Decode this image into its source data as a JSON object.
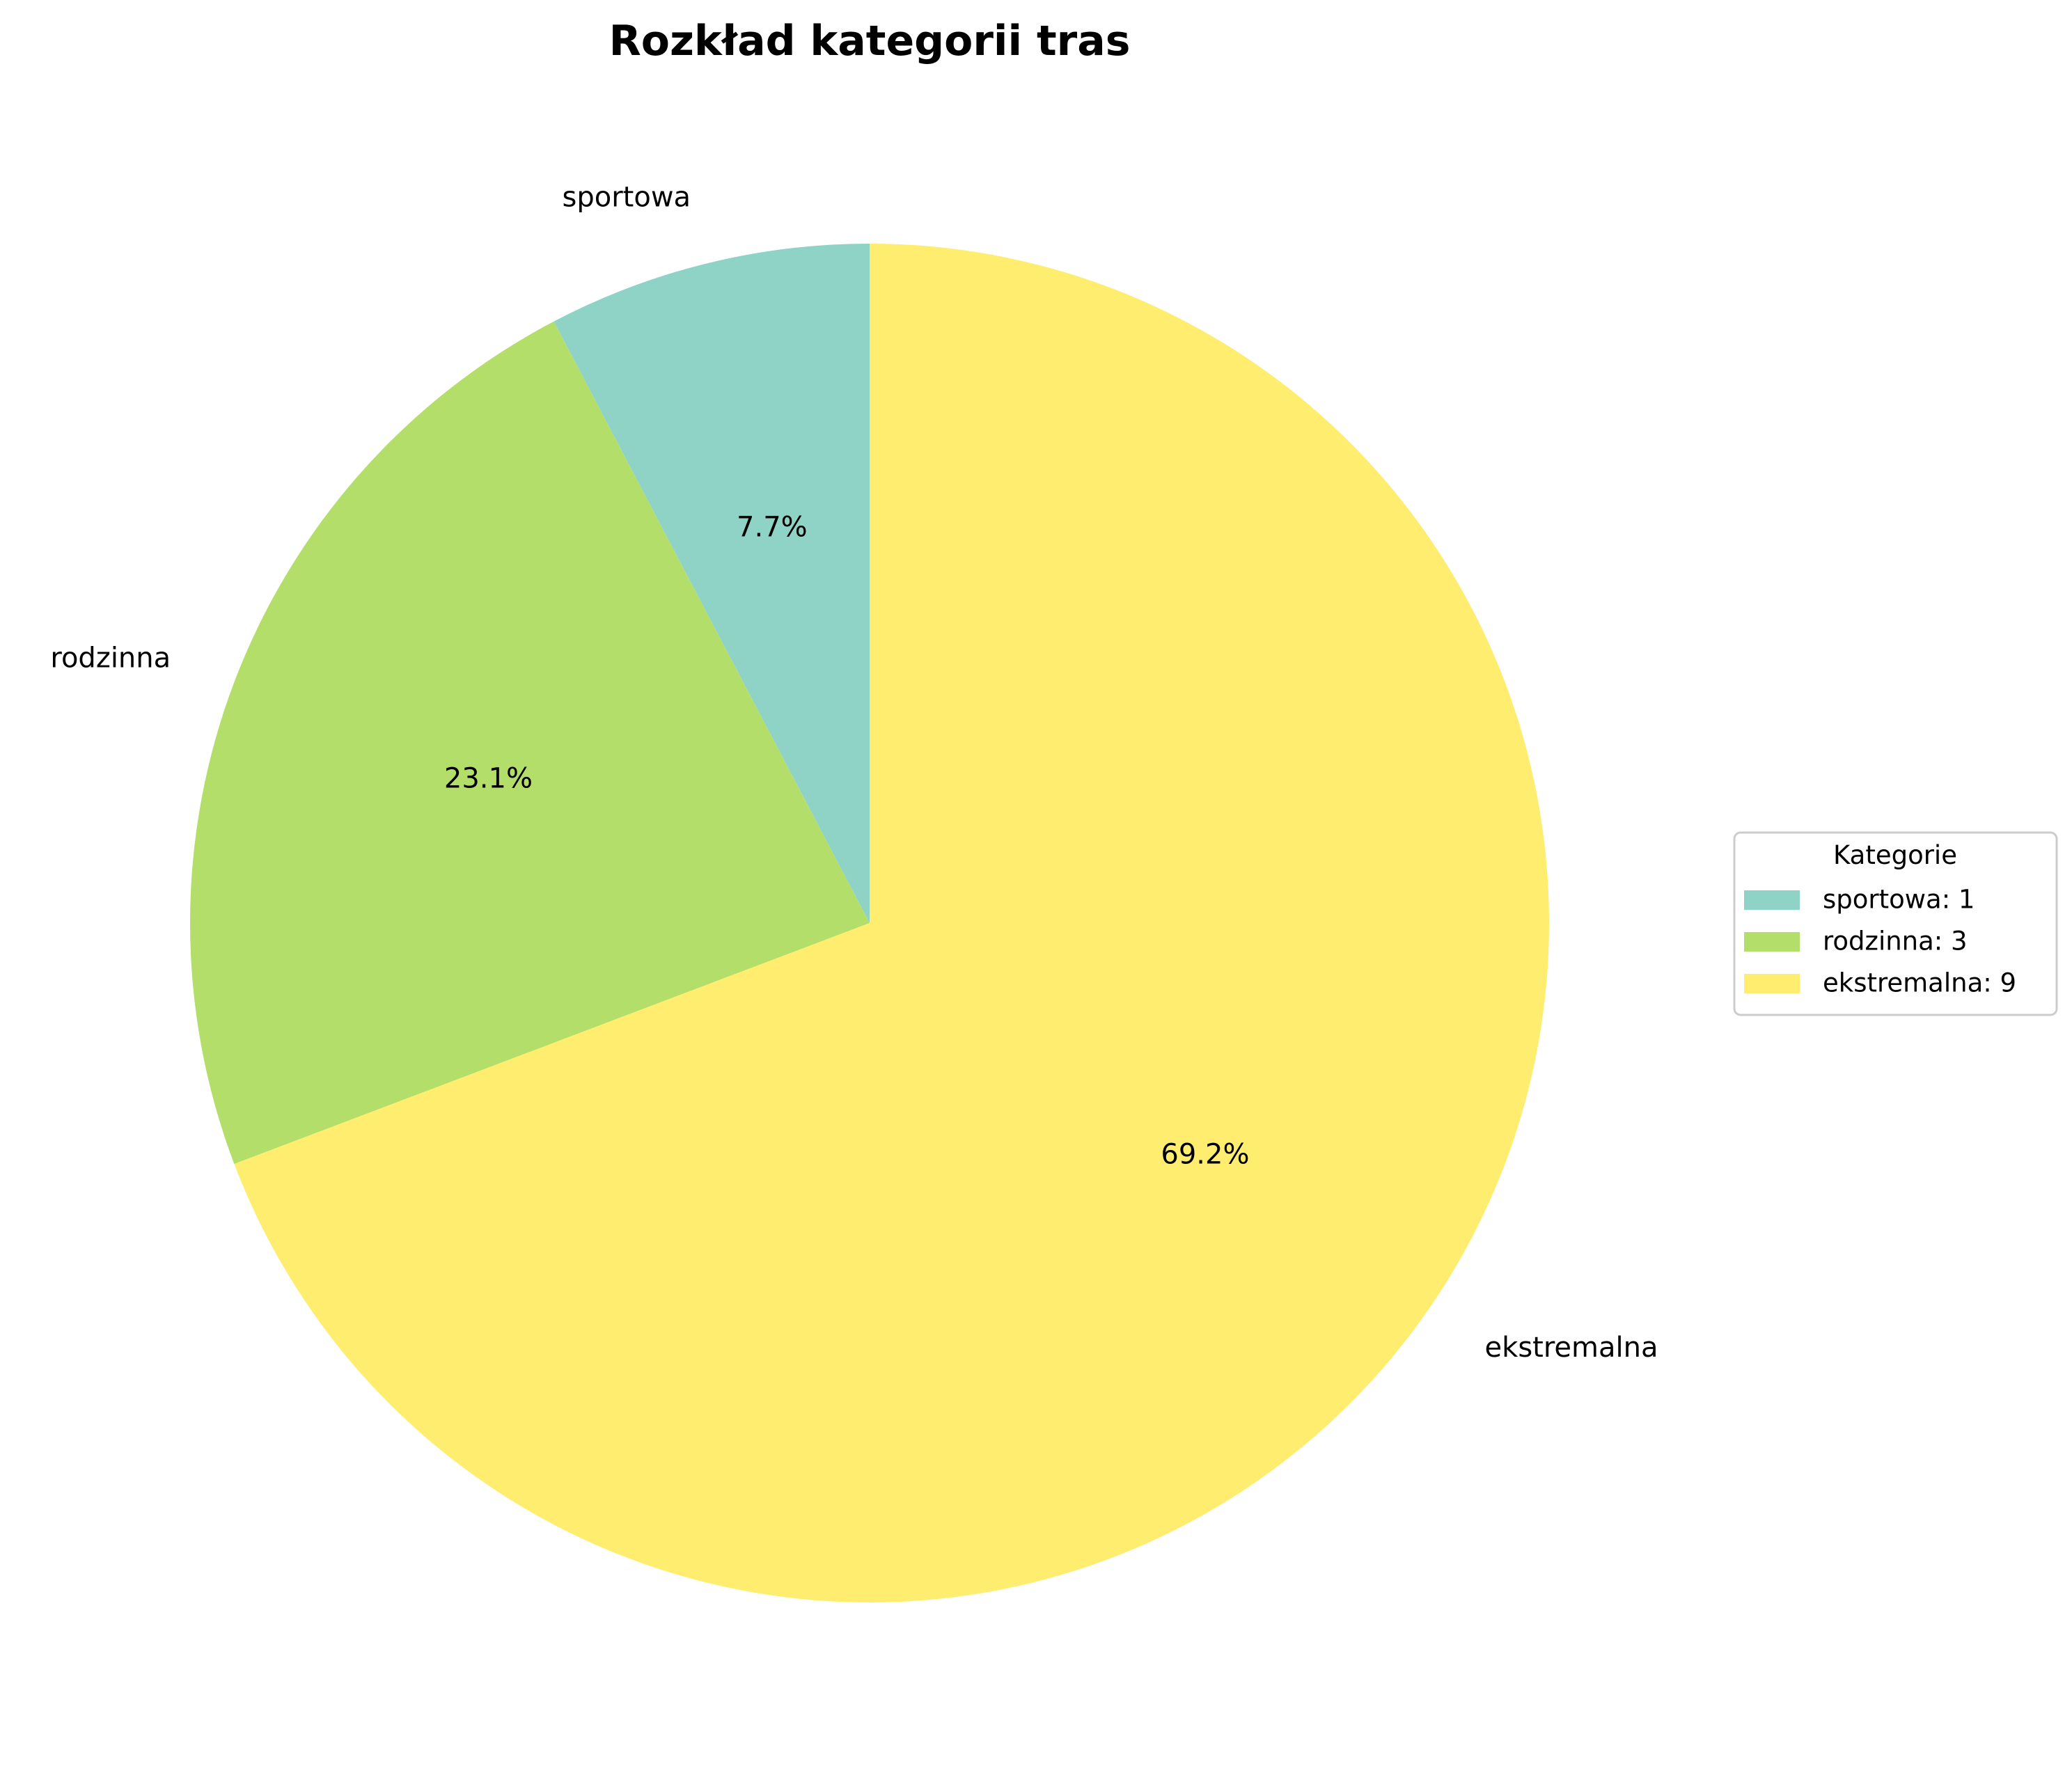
{
  "chart_data": {
    "type": "pie",
    "title": "Rozkład kategorii tras",
    "categories": [
      "sportowa",
      "rodzinna",
      "ekstremalna"
    ],
    "values": [
      1,
      3,
      9
    ],
    "percent_labels": [
      "7.7%",
      "23.1%",
      "69.2%"
    ],
    "colors": [
      "#8fd3c7",
      "#b3de6a",
      "#ffed6f"
    ],
    "start_angle_deg": 90,
    "direction": "counterclockwise",
    "legend": {
      "title": "Kategorie",
      "entries": [
        "sportowa: 1",
        "rodzinna: 3",
        "ekstremalna: 9"
      ],
      "placement": "center-right"
    }
  }
}
